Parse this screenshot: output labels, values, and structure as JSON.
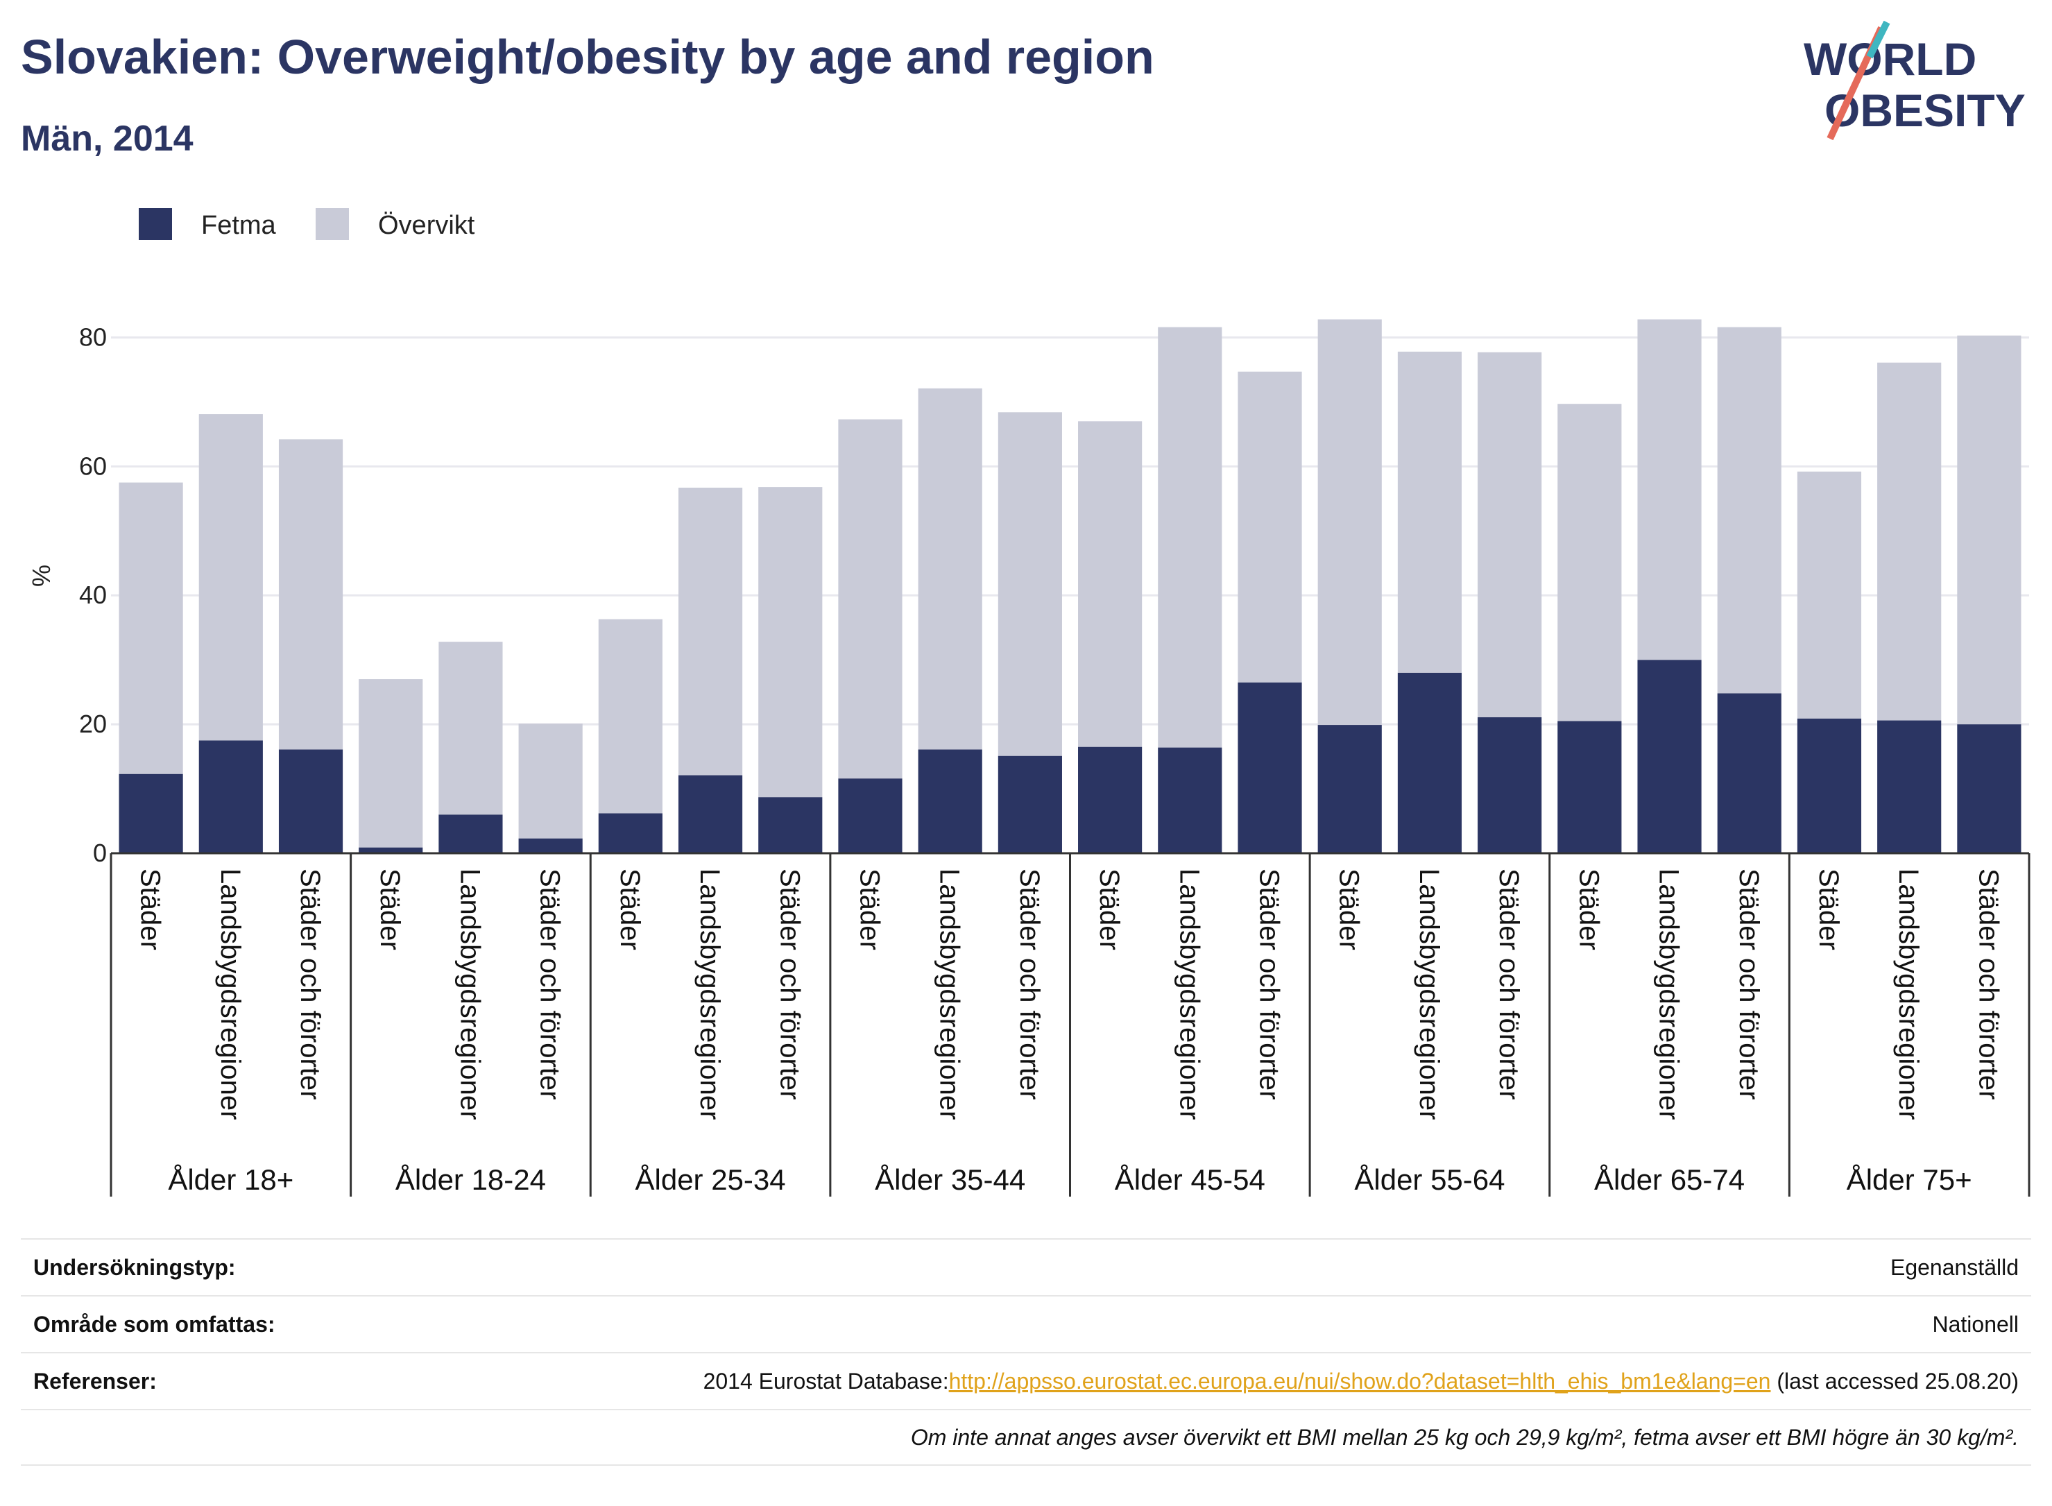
{
  "title": "Slovakien: Overweight/obesity by age and region",
  "subtitle": "Män, 2014",
  "logo": {
    "line1": "WORLD",
    "line2": "OBESITY"
  },
  "colors": {
    "fetma": "#2b3563",
    "overvikt": "#c9cbd8",
    "grid": "#e8e8ee",
    "link": "#e0a21a"
  },
  "chart_data": {
    "type": "bar",
    "stacked": true,
    "ylabel": "%",
    "ylim": [
      0,
      85
    ],
    "yticks": [
      0,
      20,
      40,
      60,
      80
    ],
    "grid": true,
    "legend_position": "top-left",
    "series": [
      {
        "name": "Fetma",
        "values": [
          12.3,
          17.5,
          16.1,
          0.9,
          6.0,
          2.3,
          6.2,
          12.1,
          8.7,
          11.6,
          16.1,
          15.1,
          16.5,
          16.4,
          26.5,
          19.9,
          28.0,
          21.1,
          20.5,
          30.0,
          24.8,
          20.9,
          20.6,
          20.0
        ]
      },
      {
        "name": "Övervikt",
        "values": [
          45.2,
          50.6,
          48.1,
          26.1,
          26.8,
          17.8,
          30.1,
          44.6,
          48.1,
          55.7,
          56.0,
          53.3,
          50.5,
          65.2,
          48.2,
          62.9,
          49.8,
          56.6,
          49.2,
          52.8,
          56.8,
          38.3,
          55.5,
          60.3
        ]
      }
    ],
    "groups": [
      {
        "label": "Ålder 18+",
        "categories": [
          "Städer",
          "Landsbygdsregioner",
          "Städer och förorter"
        ]
      },
      {
        "label": "Ålder 18-24",
        "categories": [
          "Städer",
          "Landsbygdsregioner",
          "Städer och förorter"
        ]
      },
      {
        "label": "Ålder 25-34",
        "categories": [
          "Städer",
          "Landsbygdsregioner",
          "Städer och förorter"
        ]
      },
      {
        "label": "Ålder 35-44",
        "categories": [
          "Städer",
          "Landsbygdsregioner",
          "Städer och förorter"
        ]
      },
      {
        "label": "Ålder 45-54",
        "categories": [
          "Städer",
          "Landsbygdsregioner",
          "Städer och förorter"
        ]
      },
      {
        "label": "Ålder 55-64",
        "categories": [
          "Städer",
          "Landsbygdsregioner",
          "Städer och förorter"
        ]
      },
      {
        "label": "Ålder 65-74",
        "categories": [
          "Städer",
          "Landsbygdsregioner",
          "Städer och förorter"
        ]
      },
      {
        "label": "Ålder 75+",
        "categories": [
          "Städer",
          "Landsbygdsregioner",
          "Städer och förorter"
        ]
      }
    ]
  },
  "meta": {
    "survey_label": "Undersökningstyp:",
    "survey_value": "Egenanställd",
    "area_label": "Område som omfattas:",
    "area_value": "Nationell",
    "ref_label": "Referenser:",
    "ref_prefix": "2014 Eurostat Database:",
    "ref_link": "http://appsso.eurostat.ec.europa.eu/nui/show.do?dataset=hlth_ehis_bm1e&lang=en",
    "ref_suffix": " (last accessed 25.08.20)",
    "note": "Om inte annat anges avser övervikt ett BMI mellan 25 kg och 29,9 kg/m², fetma avser ett BMI högre än 30 kg/m²."
  }
}
